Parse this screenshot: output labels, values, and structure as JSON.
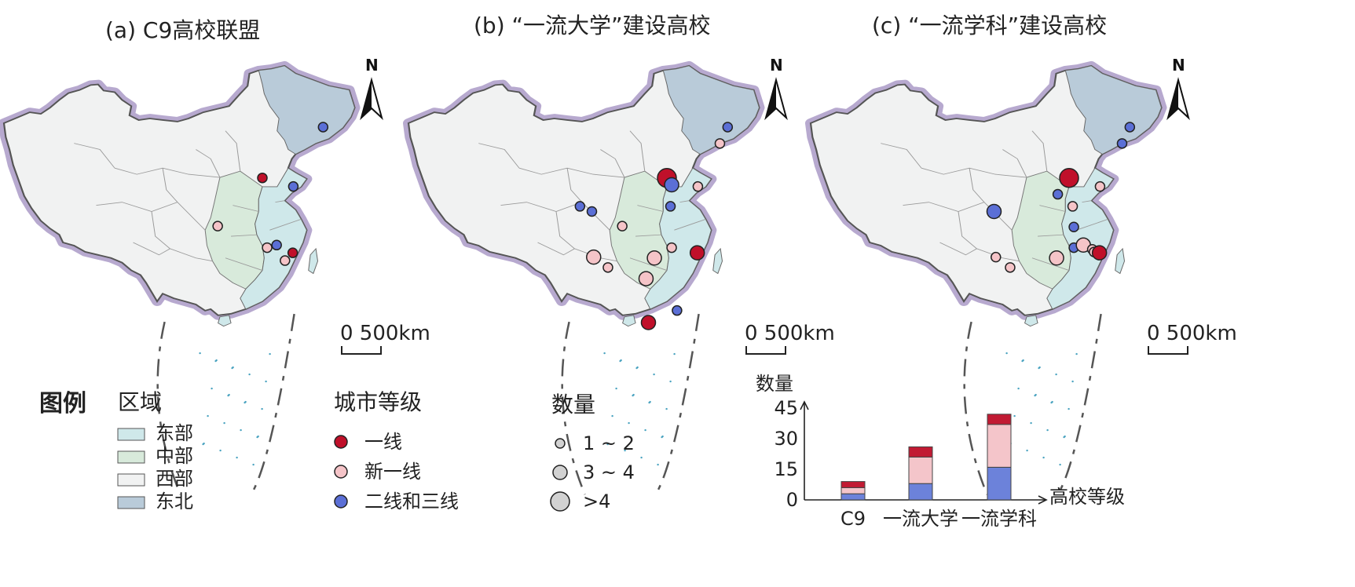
{
  "panels": [
    {
      "id": "a",
      "title": "(a) C9高校联盟",
      "scalebar": "0 500km",
      "north": "N",
      "cities": [
        {
          "tier": "一线",
          "size": "1~2",
          "lon": 116.4,
          "lat": 39.9
        },
        {
          "tier": "一线",
          "size": "1~2",
          "lon": 121.5,
          "lat": 31.2
        },
        {
          "tier": "二线和三线",
          "size": "1~2",
          "lon": 126.6,
          "lat": 45.8
        },
        {
          "tier": "二线和三线",
          "size": "1~2",
          "lon": 121.6,
          "lat": 38.9
        },
        {
          "tier": "二线和三线",
          "size": "1~2",
          "lon": 118.8,
          "lat": 32.1
        },
        {
          "tier": "新一线",
          "size": "1~2",
          "lon": 108.9,
          "lat": 34.3
        },
        {
          "tier": "新一线",
          "size": "1~2",
          "lon": 117.2,
          "lat": 31.8
        },
        {
          "tier": "新一线",
          "size": "1~2",
          "lon": 120.2,
          "lat": 30.3
        }
      ]
    },
    {
      "id": "b",
      "title": "(b) “一流大学”建设高校",
      "scalebar": "0 500km",
      "north": "N",
      "cities": [
        {
          "tier": "一线",
          "size": ">4",
          "lon": 116.4,
          "lat": 39.9
        },
        {
          "tier": "二线和三线",
          "size": "3~4",
          "lon": 117.2,
          "lat": 39.1
        },
        {
          "tier": "二线和三线",
          "size": "1~2",
          "lon": 126.6,
          "lat": 45.8
        },
        {
          "tier": "新一线",
          "size": "1~2",
          "lon": 125.3,
          "lat": 43.9
        },
        {
          "tier": "新一线",
          "size": "1~2",
          "lon": 121.6,
          "lat": 38.9
        },
        {
          "tier": "二线和三线",
          "size": "1~2",
          "lon": 117.0,
          "lat": 36.6
        },
        {
          "tier": "二线和三线",
          "size": "1~2",
          "lon": 101.8,
          "lat": 36.6
        },
        {
          "tier": "二线和三线",
          "size": "1~2",
          "lon": 103.8,
          "lat": 36.0
        },
        {
          "tier": "新一线",
          "size": "1~2",
          "lon": 108.9,
          "lat": 34.3
        },
        {
          "tier": "新一线",
          "size": "3~4",
          "lon": 104.1,
          "lat": 30.7
        },
        {
          "tier": "新一线",
          "size": "1~2",
          "lon": 106.5,
          "lat": 29.5
        },
        {
          "tier": "新一线",
          "size": "3~4",
          "lon": 114.3,
          "lat": 30.6
        },
        {
          "tier": "新一线",
          "size": "1~2",
          "lon": 117.2,
          "lat": 31.8
        },
        {
          "tier": "一线",
          "size": "3~4",
          "lon": 121.5,
          "lat": 31.2
        },
        {
          "tier": "新一线",
          "size": "3~4",
          "lon": 112.9,
          "lat": 28.2
        },
        {
          "tier": "二线和三线",
          "size": "1~2",
          "lon": 118.1,
          "lat": 24.5
        },
        {
          "tier": "一线",
          "size": "3~4",
          "lon": 113.3,
          "lat": 23.1
        }
      ]
    },
    {
      "id": "c",
      "title": "(c) “一流学科”建设高校",
      "scalebar": "0 500km",
      "north": "N",
      "cities": [
        {
          "tier": "一线",
          "size": ">4",
          "lon": 116.4,
          "lat": 39.9
        },
        {
          "tier": "二线和三线",
          "size": "1~2",
          "lon": 126.6,
          "lat": 45.8
        },
        {
          "tier": "二线和三线",
          "size": "1~2",
          "lon": 125.3,
          "lat": 43.9
        },
        {
          "tier": "新一线",
          "size": "1~2",
          "lon": 121.6,
          "lat": 38.9
        },
        {
          "tier": "二线和三线",
          "size": "1~2",
          "lon": 114.5,
          "lat": 38.0
        },
        {
          "tier": "新一线",
          "size": "1~2",
          "lon": 117.0,
          "lat": 36.6
        },
        {
          "tier": "二线和三线",
          "size": "1~2",
          "lon": 117.2,
          "lat": 34.2
        },
        {
          "tier": "二线和三线",
          "size": "3~4",
          "lon": 103.8,
          "lat": 36.0
        },
        {
          "tier": "新一线",
          "size": "1~2",
          "lon": 104.1,
          "lat": 30.7
        },
        {
          "tier": "新一线",
          "size": "1~2",
          "lon": 106.5,
          "lat": 29.5
        },
        {
          "tier": "新一线",
          "size": "3~4",
          "lon": 114.3,
          "lat": 30.6
        },
        {
          "tier": "二线和三线",
          "size": "1~2",
          "lon": 117.2,
          "lat": 31.8
        },
        {
          "tier": "新一线",
          "size": "3~4",
          "lon": 118.8,
          "lat": 32.1
        },
        {
          "tier": "新一线",
          "size": "1~2",
          "lon": 120.3,
          "lat": 31.6
        },
        {
          "tier": "新一线",
          "size": "1~2",
          "lon": 120.6,
          "lat": 31.3
        },
        {
          "tier": "一线",
          "size": "3~4",
          "lon": 121.5,
          "lat": 31.2
        }
      ]
    }
  ],
  "legend": {
    "title": "图例",
    "region_title": "区域",
    "regions": [
      {
        "label": "东部",
        "color": "#cfe8ea"
      },
      {
        "label": "中部",
        "color": "#d8eadb"
      },
      {
        "label": "西部",
        "color": "#f1f2f2"
      },
      {
        "label": "东北",
        "color": "#b9cbd9"
      }
    ],
    "tier_title": "城市等级",
    "tiers": [
      {
        "label": "一线",
        "color": "#c0102a"
      },
      {
        "label": "新一线",
        "color": "#f5c4c8"
      },
      {
        "label": "二线和三线",
        "color": "#5b6fd6"
      }
    ],
    "size_title": "数量",
    "sizes": [
      {
        "label": "1 ~ 2",
        "r": 6
      },
      {
        "label": "3 ~ 4",
        "r": 9
      },
      {
        "label": ">4",
        "r": 12
      }
    ]
  },
  "chart_data": {
    "type": "bar",
    "stacked": true,
    "title": "",
    "ylabel": "数量",
    "xlabel": "高校等级",
    "categories": [
      "C9",
      "一流大学",
      "一流学科"
    ],
    "yticks": [
      0,
      15,
      30,
      45
    ],
    "ylim": [
      0,
      45
    ],
    "series": [
      {
        "name": "二线和三线",
        "color": "#6c82da",
        "values": [
          3,
          8,
          16
        ]
      },
      {
        "name": "新一线",
        "color": "#f4c5ca",
        "values": [
          3,
          13,
          21
        ]
      },
      {
        "name": "一线",
        "color": "#c11a33",
        "values": [
          3,
          5,
          5
        ]
      }
    ]
  }
}
